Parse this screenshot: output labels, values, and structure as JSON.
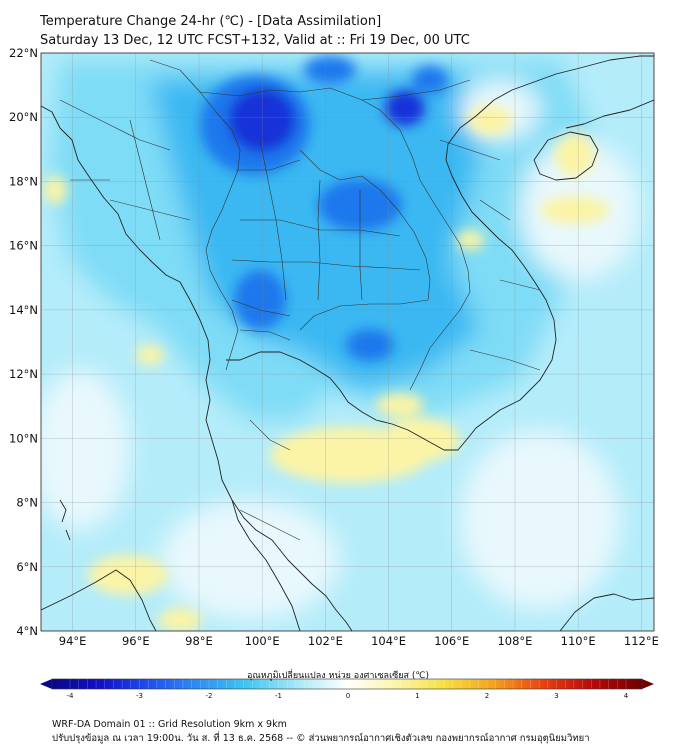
{
  "title": {
    "line1": "Temperature Change 24-hr (℃) - [Data Assimilation]",
    "line2": "Saturday 13 Dec, 12 UTC FCST+132, Valid at :: Fri 19 Dec, 00 UTC"
  },
  "lat_labels": [
    "22°N",
    "20°N",
    "18°N",
    "16°N",
    "14°N",
    "12°N",
    "10°N",
    "8°N",
    "6°N",
    "4°N"
  ],
  "lon_labels": [
    "94°E",
    "96°E",
    "98°E",
    "100°E",
    "102°E",
    "104°E",
    "106°E",
    "108°E",
    "110°E",
    "112°E"
  ],
  "colorbar": {
    "label": "อุณหภูมิเปลี่ยนแปลง หน่วย องศาเซลเซียส (℃)",
    "ticks": [
      "-4",
      "-3",
      "-2",
      "-1",
      "0",
      "1",
      "2",
      "3",
      "4"
    ],
    "colors": [
      "#08088a",
      "#1010c8",
      "#2050ee",
      "#2e90f5",
      "#41c8f0",
      "#a8e8f8",
      "#ffffff",
      "#fbf6a8",
      "#f6df40",
      "#f3a020",
      "#e84010",
      "#b80808",
      "#700000"
    ]
  },
  "footer": {
    "line1": "WRF-DA Domain 01 :: Grid Resolution 9km x 9km",
    "line2": "ปรับปรุงข้อมูล ณ เวลา 19:00น. วัน ส. ที่ 13 ธ.ค. 2568 -- © ส่วนพยากรณ์อากาศเชิงตัวเลข กองพยากรณ์อากาศ กรมอุตุนิยมวิทยา"
  },
  "field_colors": {
    "background": "#b4ecfa",
    "cyan": "#7fdcf6",
    "blue": "#3ab8f2",
    "mid_blue": "#1e78ec",
    "deep_blue": "#1230d8",
    "pale": "#e8f8fd",
    "yellow": "#fbf4a6",
    "coast": "#222222"
  }
}
